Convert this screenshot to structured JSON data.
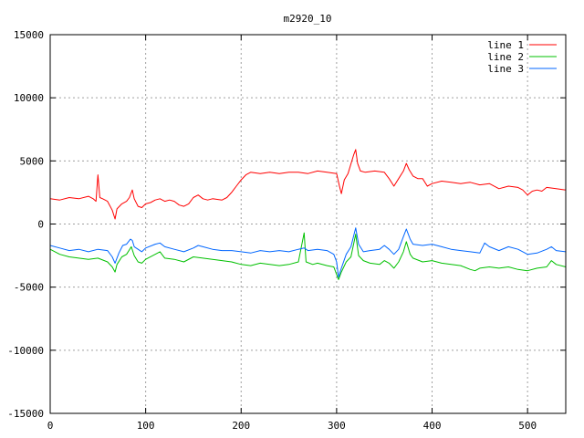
{
  "chart_data": {
    "type": "line",
    "title": "m2920_10",
    "xlabel": "",
    "ylabel": "",
    "xlim": [
      0,
      540
    ],
    "ylim": [
      -15000,
      15000
    ],
    "x_ticks": [
      0,
      100,
      200,
      300,
      400,
      500
    ],
    "y_ticks": [
      15000,
      10000,
      5000,
      0,
      -5000,
      -10000,
      -15000
    ],
    "grid": true,
    "legend_position": "top-right",
    "series": [
      {
        "name": "line 1",
        "color": "#ff0000",
        "points": [
          [
            0,
            2000
          ],
          [
            10,
            1900
          ],
          [
            20,
            2100
          ],
          [
            30,
            2000
          ],
          [
            40,
            2200
          ],
          [
            45,
            2000
          ],
          [
            48,
            1800
          ],
          [
            50,
            3900
          ],
          [
            52,
            2100
          ],
          [
            55,
            2000
          ],
          [
            60,
            1800
          ],
          [
            65,
            1100
          ],
          [
            68,
            400
          ],
          [
            70,
            1200
          ],
          [
            75,
            1600
          ],
          [
            80,
            1800
          ],
          [
            83,
            2100
          ],
          [
            86,
            2700
          ],
          [
            88,
            2000
          ],
          [
            92,
            1400
          ],
          [
            96,
            1300
          ],
          [
            100,
            1600
          ],
          [
            105,
            1700
          ],
          [
            110,
            1900
          ],
          [
            115,
            2000
          ],
          [
            120,
            1800
          ],
          [
            125,
            1900
          ],
          [
            130,
            1800
          ],
          [
            135,
            1500
          ],
          [
            140,
            1400
          ],
          [
            145,
            1600
          ],
          [
            150,
            2100
          ],
          [
            155,
            2300
          ],
          [
            160,
            2000
          ],
          [
            165,
            1900
          ],
          [
            170,
            2000
          ],
          [
            180,
            1900
          ],
          [
            185,
            2100
          ],
          [
            190,
            2500
          ],
          [
            195,
            3000
          ],
          [
            200,
            3500
          ],
          [
            205,
            3900
          ],
          [
            210,
            4100
          ],
          [
            220,
            4000
          ],
          [
            230,
            4100
          ],
          [
            240,
            4000
          ],
          [
            250,
            4100
          ],
          [
            260,
            4100
          ],
          [
            270,
            4000
          ],
          [
            280,
            4200
          ],
          [
            290,
            4100
          ],
          [
            300,
            4000
          ],
          [
            303,
            3000
          ],
          [
            305,
            2400
          ],
          [
            308,
            3500
          ],
          [
            312,
            4000
          ],
          [
            318,
            5500
          ],
          [
            320,
            5900
          ],
          [
            322,
            4800
          ],
          [
            325,
            4200
          ],
          [
            330,
            4100
          ],
          [
            340,
            4200
          ],
          [
            350,
            4100
          ],
          [
            355,
            3600
          ],
          [
            360,
            3000
          ],
          [
            365,
            3600
          ],
          [
            370,
            4200
          ],
          [
            373,
            4800
          ],
          [
            376,
            4300
          ],
          [
            380,
            3800
          ],
          [
            385,
            3600
          ],
          [
            390,
            3600
          ],
          [
            395,
            3000
          ],
          [
            400,
            3200
          ],
          [
            410,
            3400
          ],
          [
            420,
            3300
          ],
          [
            430,
            3200
          ],
          [
            440,
            3300
          ],
          [
            450,
            3100
          ],
          [
            460,
            3200
          ],
          [
            470,
            2800
          ],
          [
            480,
            3000
          ],
          [
            490,
            2900
          ],
          [
            495,
            2700
          ],
          [
            500,
            2300
          ],
          [
            505,
            2600
          ],
          [
            510,
            2700
          ],
          [
            515,
            2600
          ],
          [
            520,
            2900
          ],
          [
            530,
            2800
          ],
          [
            540,
            2700
          ]
        ]
      },
      {
        "name": "line 2",
        "color": "#00c000",
        "points": [
          [
            0,
            -2000
          ],
          [
            10,
            -2400
          ],
          [
            20,
            -2600
          ],
          [
            30,
            -2700
          ],
          [
            40,
            -2800
          ],
          [
            50,
            -2700
          ],
          [
            60,
            -3000
          ],
          [
            65,
            -3400
          ],
          [
            68,
            -3800
          ],
          [
            70,
            -3200
          ],
          [
            75,
            -2600
          ],
          [
            80,
            -2400
          ],
          [
            85,
            -1800
          ],
          [
            88,
            -2500
          ],
          [
            92,
            -3000
          ],
          [
            96,
            -3100
          ],
          [
            100,
            -2800
          ],
          [
            110,
            -2400
          ],
          [
            115,
            -2200
          ],
          [
            120,
            -2700
          ],
          [
            130,
            -2800
          ],
          [
            140,
            -3000
          ],
          [
            150,
            -2600
          ],
          [
            160,
            -2700
          ],
          [
            170,
            -2800
          ],
          [
            180,
            -2900
          ],
          [
            190,
            -3000
          ],
          [
            200,
            -3200
          ],
          [
            210,
            -3300
          ],
          [
            220,
            -3100
          ],
          [
            230,
            -3200
          ],
          [
            240,
            -3300
          ],
          [
            250,
            -3200
          ],
          [
            260,
            -3000
          ],
          [
            266,
            -700
          ],
          [
            268,
            -3000
          ],
          [
            275,
            -3200
          ],
          [
            280,
            -3100
          ],
          [
            290,
            -3300
          ],
          [
            297,
            -3400
          ],
          [
            300,
            -4000
          ],
          [
            302,
            -4400
          ],
          [
            305,
            -3800
          ],
          [
            310,
            -3000
          ],
          [
            315,
            -2600
          ],
          [
            320,
            -800
          ],
          [
            323,
            -2500
          ],
          [
            328,
            -2900
          ],
          [
            335,
            -3100
          ],
          [
            345,
            -3200
          ],
          [
            350,
            -2900
          ],
          [
            355,
            -3100
          ],
          [
            360,
            -3500
          ],
          [
            365,
            -3000
          ],
          [
            370,
            -2200
          ],
          [
            373,
            -1400
          ],
          [
            377,
            -2400
          ],
          [
            380,
            -2700
          ],
          [
            390,
            -3000
          ],
          [
            400,
            -2900
          ],
          [
            410,
            -3100
          ],
          [
            420,
            -3200
          ],
          [
            430,
            -3300
          ],
          [
            440,
            -3600
          ],
          [
            445,
            -3700
          ],
          [
            450,
            -3500
          ],
          [
            460,
            -3400
          ],
          [
            470,
            -3500
          ],
          [
            480,
            -3400
          ],
          [
            490,
            -3600
          ],
          [
            500,
            -3700
          ],
          [
            510,
            -3500
          ],
          [
            520,
            -3400
          ],
          [
            525,
            -2900
          ],
          [
            530,
            -3200
          ],
          [
            540,
            -3400
          ]
        ]
      },
      {
        "name": "line 3",
        "color": "#0066ff",
        "points": [
          [
            0,
            -1700
          ],
          [
            10,
            -1900
          ],
          [
            20,
            -2100
          ],
          [
            30,
            -2000
          ],
          [
            40,
            -2200
          ],
          [
            50,
            -2000
          ],
          [
            60,
            -2100
          ],
          [
            65,
            -2600
          ],
          [
            68,
            -3100
          ],
          [
            72,
            -2300
          ],
          [
            76,
            -1700
          ],
          [
            80,
            -1600
          ],
          [
            84,
            -1200
          ],
          [
            86,
            -1300
          ],
          [
            88,
            -1800
          ],
          [
            92,
            -2000
          ],
          [
            96,
            -2200
          ],
          [
            100,
            -1900
          ],
          [
            110,
            -1600
          ],
          [
            115,
            -1500
          ],
          [
            120,
            -1800
          ],
          [
            130,
            -2000
          ],
          [
            140,
            -2200
          ],
          [
            150,
            -1900
          ],
          [
            155,
            -1700
          ],
          [
            160,
            -1800
          ],
          [
            170,
            -2000
          ],
          [
            180,
            -2100
          ],
          [
            190,
            -2100
          ],
          [
            200,
            -2200
          ],
          [
            210,
            -2300
          ],
          [
            220,
            -2100
          ],
          [
            230,
            -2200
          ],
          [
            240,
            -2100
          ],
          [
            250,
            -2200
          ],
          [
            260,
            -2000
          ],
          [
            266,
            -1900
          ],
          [
            270,
            -2100
          ],
          [
            280,
            -2000
          ],
          [
            290,
            -2100
          ],
          [
            297,
            -2400
          ],
          [
            300,
            -3000
          ],
          [
            302,
            -4200
          ],
          [
            305,
            -3500
          ],
          [
            310,
            -2400
          ],
          [
            315,
            -1800
          ],
          [
            320,
            -300
          ],
          [
            323,
            -1600
          ],
          [
            328,
            -2200
          ],
          [
            335,
            -2100
          ],
          [
            345,
            -2000
          ],
          [
            350,
            -1700
          ],
          [
            355,
            -2000
          ],
          [
            360,
            -2400
          ],
          [
            365,
            -2000
          ],
          [
            370,
            -1000
          ],
          [
            373,
            -400
          ],
          [
            377,
            -1200
          ],
          [
            380,
            -1600
          ],
          [
            390,
            -1700
          ],
          [
            400,
            -1600
          ],
          [
            410,
            -1800
          ],
          [
            420,
            -2000
          ],
          [
            430,
            -2100
          ],
          [
            440,
            -2200
          ],
          [
            450,
            -2300
          ],
          [
            455,
            -1500
          ],
          [
            460,
            -1800
          ],
          [
            470,
            -2100
          ],
          [
            480,
            -1800
          ],
          [
            490,
            -2000
          ],
          [
            500,
            -2400
          ],
          [
            510,
            -2300
          ],
          [
            520,
            -2000
          ],
          [
            525,
            -1800
          ],
          [
            530,
            -2100
          ],
          [
            540,
            -2200
          ]
        ]
      }
    ]
  }
}
